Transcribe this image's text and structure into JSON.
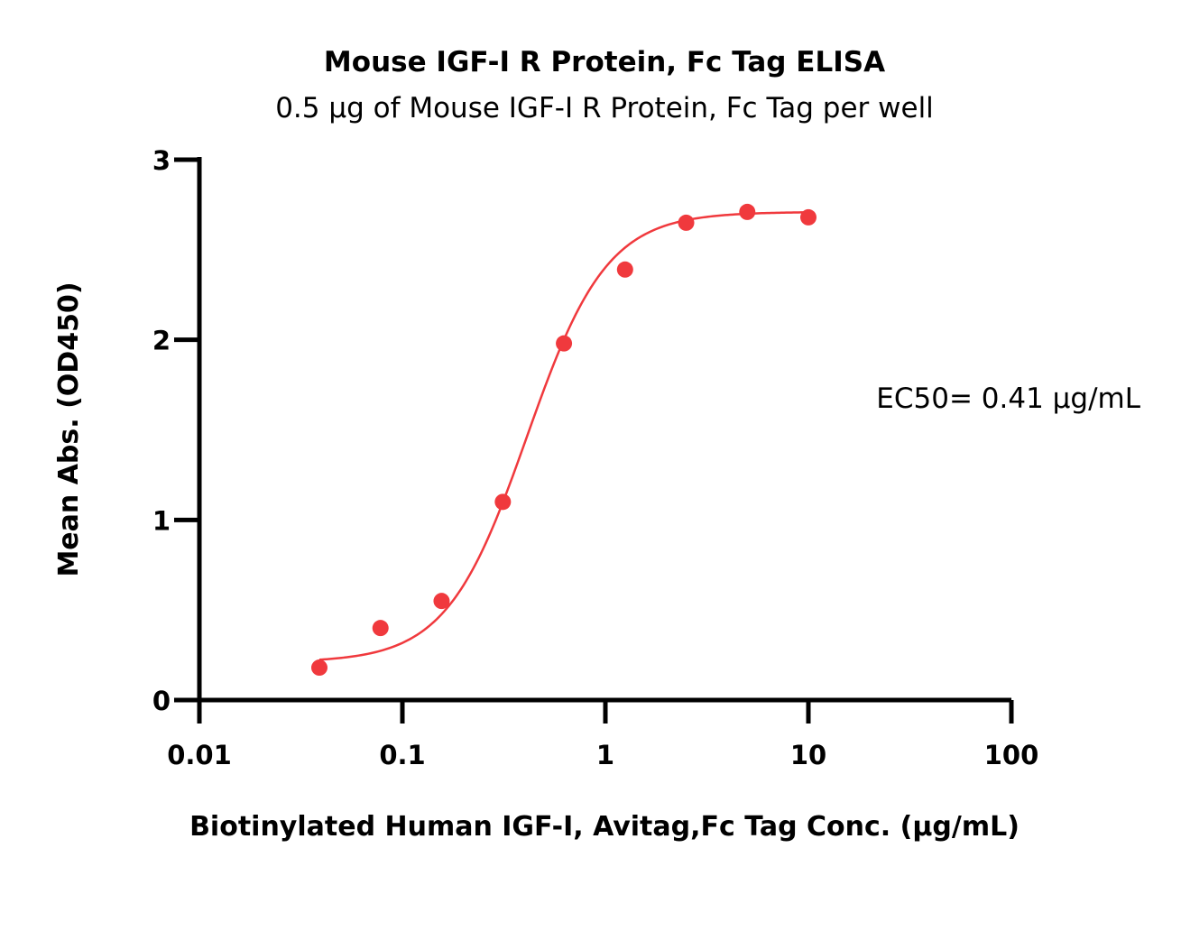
{
  "chart_data": {
    "type": "scatter",
    "title": "Mouse IGF-I R Protein, Fc Tag ELISA",
    "subtitle": "0.5 μg of Mouse IGF-I R Protein, Fc Tag per well",
    "xlabel": "Biotinylated Human IGF-I, Avitag,Fc Tag Conc. (μg/mL)",
    "ylabel": "Mean Abs. (OD450)",
    "x_scale": "log",
    "xlim": [
      0.01,
      100
    ],
    "ylim": [
      0,
      3
    ],
    "x_ticks": [
      0.01,
      0.1,
      1,
      10,
      100
    ],
    "x_tick_labels": [
      "0.01",
      "0.1",
      "1",
      "10",
      "100"
    ],
    "y_ticks": [
      0,
      1,
      2,
      3
    ],
    "y_tick_labels": [
      "0",
      "1",
      "2",
      "3"
    ],
    "grid": false,
    "series": [
      {
        "x": [
          0.039,
          0.078,
          0.156,
          0.3125,
          0.625,
          1.25,
          2.5,
          5,
          10
        ],
        "y": [
          0.18,
          0.4,
          0.55,
          1.1,
          1.98,
          2.39,
          2.65,
          2.71,
          2.68
        ],
        "color": "#f0393d",
        "marker": "circle",
        "fit": "4PL"
      }
    ],
    "fit_curve": {
      "bottom": 0.21,
      "top": 2.71,
      "ec50": 0.41,
      "hill": 2.2,
      "x_range": [
        0.039,
        10
      ]
    },
    "annotations": [
      {
        "text": "EC50= 0.41 μg/mL",
        "position": "right-middle"
      }
    ]
  }
}
